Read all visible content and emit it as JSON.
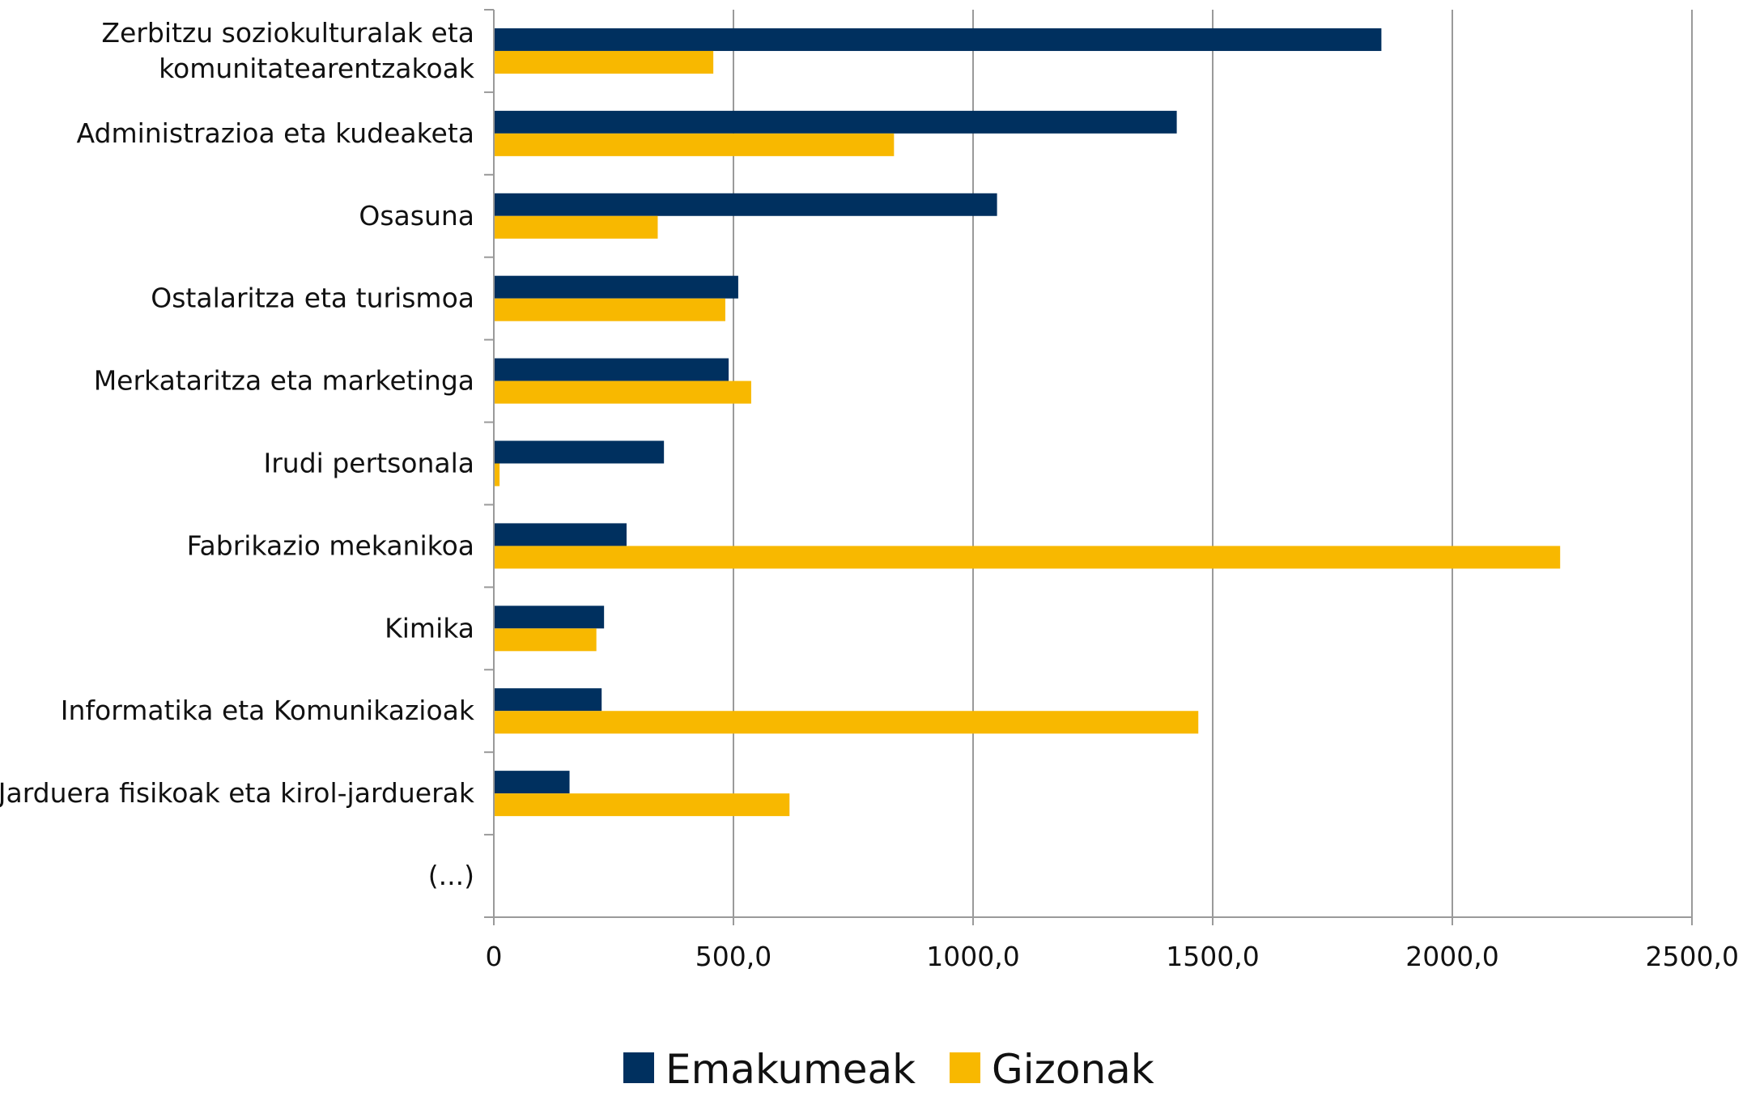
{
  "chart_data": {
    "type": "bar",
    "orientation": "horizontal",
    "categories": [
      [
        "Zerbitzu soziokulturalak eta",
        "komunitatearentzakoak"
      ],
      [
        "Administrazioa eta kudeaketa"
      ],
      [
        "Osasuna"
      ],
      [
        "Ostalaritza eta turismoa"
      ],
      [
        "Merkataritza eta marketinga"
      ],
      [
        "Irudi pertsonala"
      ],
      [
        "Fabrikazio mekanikoa"
      ],
      [
        "Kimika"
      ],
      [
        "Informatika eta Komunikazioak"
      ],
      [
        "Jarduera fisikoak eta kirol-jarduerak"
      ],
      [
        "(...)"
      ]
    ],
    "series": [
      {
        "name": "Emakumeak",
        "color": "#00305f",
        "values": [
          1852,
          1425,
          1050,
          510,
          490,
          355,
          277,
          230,
          225,
          158,
          null
        ]
      },
      {
        "name": "Gizonak",
        "color": "#f8b800",
        "values": [
          458,
          835,
          342,
          483,
          537,
          12,
          2225,
          214,
          1470,
          617,
          null
        ]
      }
    ],
    "xlim": [
      0,
      2500
    ],
    "xticks": [
      0,
      500,
      1000,
      1500,
      2000,
      2500
    ],
    "xtick_labels": [
      "0",
      "500,0",
      "1000,0",
      "1500,0",
      "2000,0",
      "2500,0"
    ],
    "grid": "vertical",
    "legend_position": "bottom"
  }
}
